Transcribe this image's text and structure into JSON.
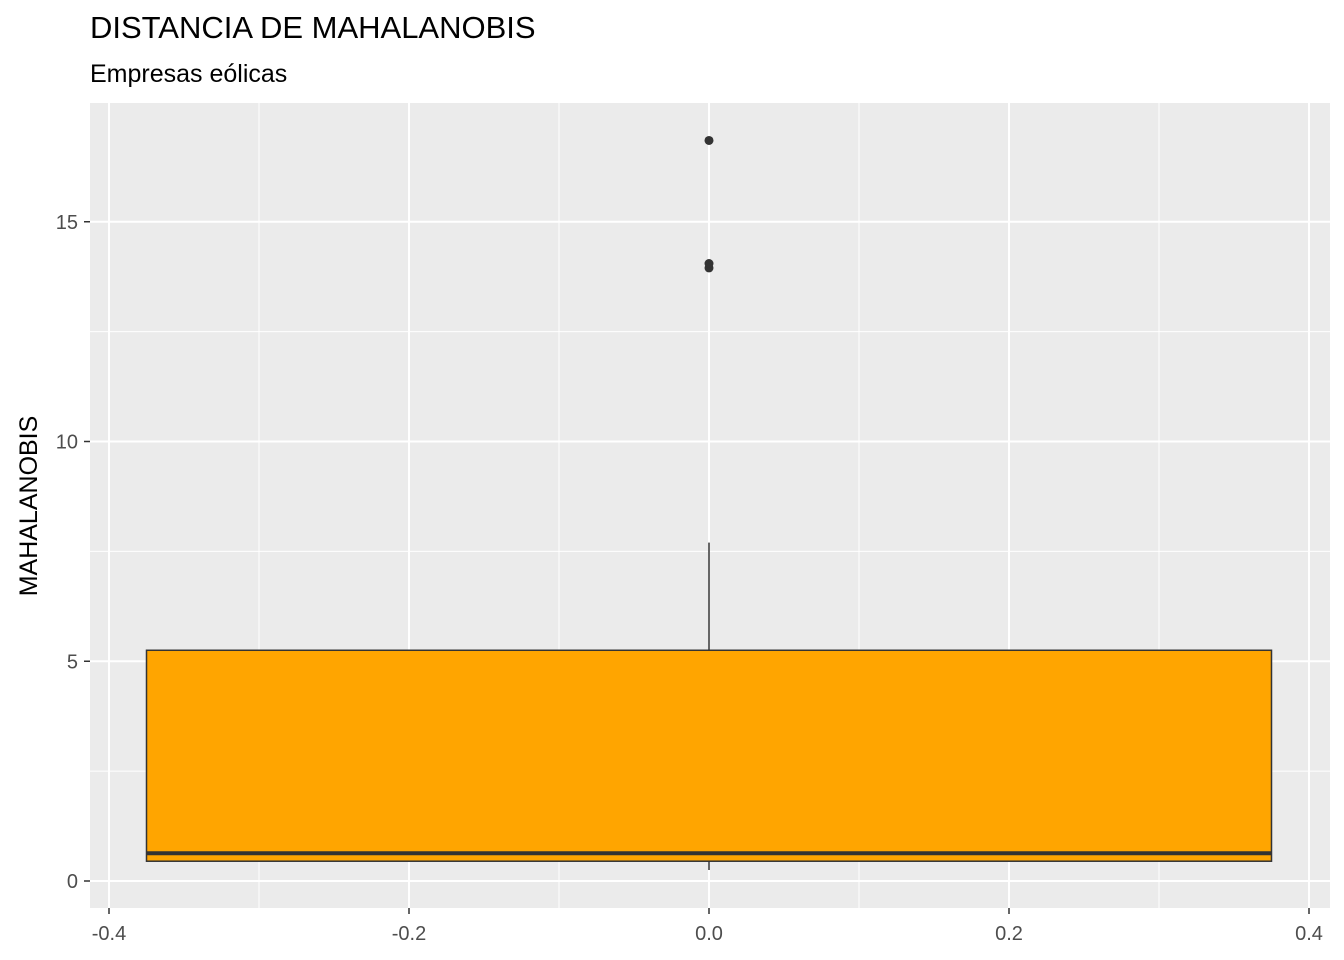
{
  "chart_data": {
    "type": "boxplot",
    "title": "DISTANCIA DE MAHALANOBIS",
    "subtitle": "Empresas eólicas",
    "xlabel": "",
    "ylabel": "MAHALANOBIS",
    "xlim": [
      -0.4,
      0.4
    ],
    "ylim": [
      0,
      17
    ],
    "x_ticks": [
      -0.4,
      -0.2,
      0.0,
      0.2,
      0.4
    ],
    "x_tick_labels": [
      "-0.4",
      "-0.2",
      "0.0",
      "0.2",
      "0.4"
    ],
    "y_ticks": [
      0,
      5,
      10,
      15
    ],
    "y_tick_labels": [
      "0",
      "5",
      "10",
      "15"
    ],
    "grid": true,
    "box": {
      "x": 0.0,
      "xmin": -0.375,
      "xmax": 0.375,
      "whisker_low": 0.25,
      "q1": 0.45,
      "median": 0.63,
      "q3": 5.25,
      "whisker_high": 7.7,
      "outliers": [
        13.95,
        14.05,
        16.85
      ]
    },
    "colors": {
      "panel_bg": "#EBEBEB",
      "grid": "#FFFFFF",
      "box_fill": "#FFA500",
      "line": "#333333",
      "text": "#4D4D4D"
    }
  }
}
